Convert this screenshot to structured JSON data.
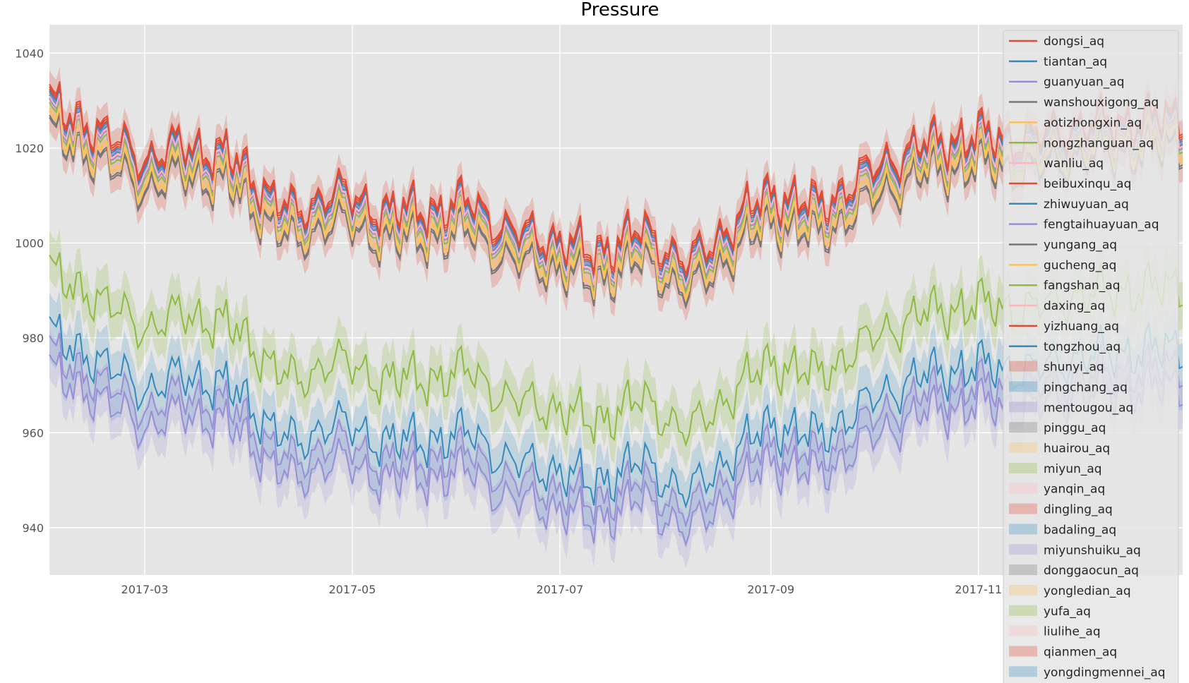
{
  "chart_data": {
    "type": "line",
    "title": "Pressure",
    "xlabel": "",
    "ylabel": "",
    "x_start": "2017-02-01",
    "x_end": "2017-12-31",
    "xticks": [
      "2017-03",
      "2017-05",
      "2017-07",
      "2017-09",
      "2017-11"
    ],
    "ylim": [
      930,
      1046
    ],
    "yticks": [
      940,
      960,
      980,
      1000,
      1020,
      1040
    ],
    "grid": true,
    "legend": "right",
    "bands": {
      "upper": {
        "color": "#E24A33",
        "alpha": 0.25,
        "widen": 3
      },
      "hill": {
        "color": "#8EBA42",
        "alpha": 0.22,
        "widen": 5
      },
      "lower": {
        "color": "#348ABD",
        "alpha": 0.2,
        "widen": 5
      },
      "lowest": {
        "color": "#988ED5",
        "alpha": 0.2,
        "widen": 5
      }
    },
    "baseline": {
      "x": [
        "2017-02-01",
        "2017-02-06",
        "2017-02-12",
        "2017-02-20",
        "2017-03-01",
        "2017-03-12",
        "2017-03-25",
        "2017-04-05",
        "2017-04-15",
        "2017-04-25",
        "2017-05-05",
        "2017-05-20",
        "2017-06-05",
        "2017-06-15",
        "2017-07-01",
        "2017-07-10",
        "2017-07-25",
        "2017-08-08",
        "2017-08-20",
        "2017-09-01",
        "2017-09-15",
        "2017-10-01",
        "2017-10-15",
        "2017-11-01",
        "2017-11-15",
        "2017-12-01",
        "2017-12-15",
        "2017-12-31"
      ],
      "y": [
        1027,
        1024,
        1023,
        1019,
        1015,
        1018,
        1016,
        1009,
        1003,
        1009,
        1005,
        1004,
        1006,
        1000,
        998,
        995,
        1000,
        993,
        1001,
        1008,
        1005,
        1013,
        1018,
        1020,
        1019,
        1022,
        1023,
        1024
      ]
    },
    "series": [
      {
        "name": "dongsi_aq",
        "color": "#E24A33",
        "offset": 2.0,
        "group": "upper",
        "style": "line"
      },
      {
        "name": "tiantan_aq",
        "color": "#348ABD",
        "offset": 0.8,
        "group": "upper",
        "style": "line"
      },
      {
        "name": "guanyuan_aq",
        "color": "#988ED5",
        "offset": 1.2,
        "group": "upper",
        "style": "line"
      },
      {
        "name": "wanshouxigong_aq",
        "color": "#777777",
        "offset": -3.5,
        "group": "upper",
        "style": "line"
      },
      {
        "name": "aotizhongxin_aq",
        "color": "#FBC15E",
        "offset": -2.0,
        "group": "upper",
        "style": "line"
      },
      {
        "name": "nongzhanguan_aq",
        "color": "#8EBA42",
        "offset": -0.8,
        "group": "upper",
        "style": "line"
      },
      {
        "name": "wanliu_aq",
        "color": "#FFB5B8",
        "offset": 0.2,
        "group": "upper",
        "style": "line"
      },
      {
        "name": "beibuxinqu_aq",
        "color": "#E24A33",
        "offset": 3.0,
        "group": "upper",
        "style": "line"
      },
      {
        "name": "zhiwuyuan_aq",
        "color": "#348ABD",
        "offset": 1.6,
        "group": "upper",
        "style": "line"
      },
      {
        "name": "fengtaihuayuan_aq",
        "color": "#988ED5",
        "offset": 0.0,
        "group": "upper",
        "style": "line"
      },
      {
        "name": "yungang_aq",
        "color": "#777777",
        "offset": -4.0,
        "group": "upper",
        "style": "line"
      },
      {
        "name": "gucheng_aq",
        "color": "#FBC15E",
        "offset": -2.6,
        "group": "upper",
        "style": "line"
      },
      {
        "name": "fangshan_aq",
        "color": "#8EBA42",
        "offset": -33.0,
        "group": "hill",
        "style": "line"
      },
      {
        "name": "daxing_aq",
        "color": "#FFB5B8",
        "offset": 0.5,
        "group": "upper",
        "style": "line"
      },
      {
        "name": "yizhuang_aq",
        "color": "#E24A33",
        "offset": 2.5,
        "group": "upper",
        "style": "line"
      },
      {
        "name": "tongzhou_aq",
        "color": "#348ABD",
        "offset": -46.0,
        "group": "lower",
        "style": "line"
      },
      {
        "name": "shunyi_aq",
        "color": "#E24A33",
        "style": "band"
      },
      {
        "name": "pingchang_aq",
        "color": "#348ABD",
        "style": "band"
      },
      {
        "name": "mentougou_aq",
        "color": "#988ED5",
        "style": "band"
      },
      {
        "name": "pinggu_aq",
        "color": "#777777",
        "style": "band"
      },
      {
        "name": "huairou_aq",
        "color": "#FBC15E",
        "style": "band"
      },
      {
        "name": "miyun_aq",
        "color": "#8EBA42",
        "style": "band"
      },
      {
        "name": "yanqin_aq",
        "color": "#FFB5B8",
        "style": "band"
      },
      {
        "name": "dingling_aq",
        "color": "#E24A33",
        "style": "band"
      },
      {
        "name": "badaling_aq",
        "color": "#348ABD",
        "style": "band"
      },
      {
        "name": "miyunshuiku_aq",
        "color": "#988ED5",
        "style": "band"
      },
      {
        "name": "donggaocun_aq",
        "color": "#777777",
        "style": "band"
      },
      {
        "name": "yongledian_aq",
        "color": "#FBC15E",
        "style": "band"
      },
      {
        "name": "yufa_aq",
        "color": "#8EBA42",
        "style": "band"
      },
      {
        "name": "liulihe_aq",
        "color": "#FFB5B8",
        "style": "band"
      },
      {
        "name": "qianmen_aq",
        "color": "#E24A33",
        "style": "band"
      },
      {
        "name": "yongdingmennei_aq",
        "color": "#348ABD",
        "style": "band"
      }
    ],
    "extra_lines": [
      {
        "color": "#988ED5",
        "offset": -50.0,
        "group": "lower"
      },
      {
        "color": "#988ED5",
        "offset": -54.0,
        "group": "lowest"
      }
    ]
  }
}
